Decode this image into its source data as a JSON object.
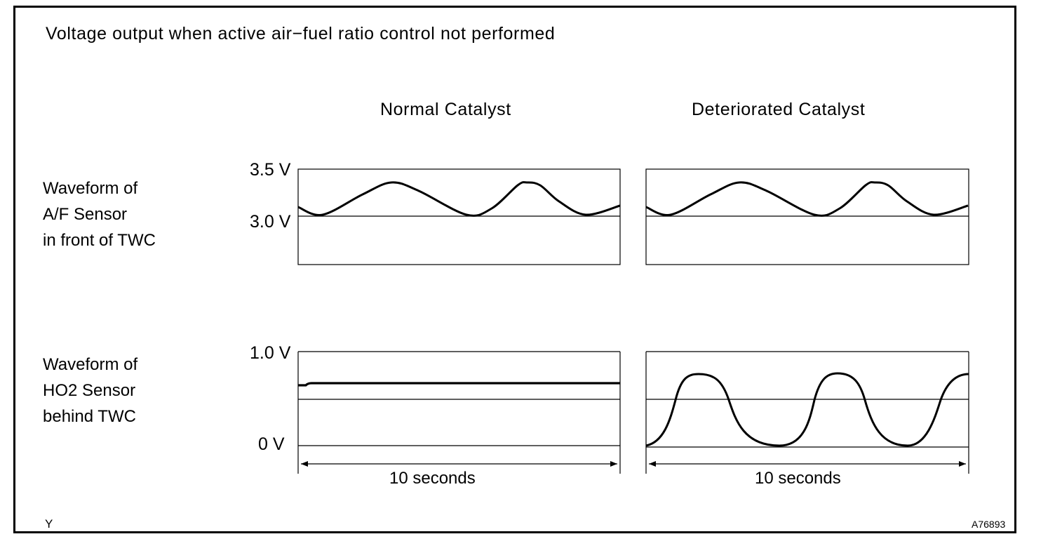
{
  "title": "Voltage output when active air−fuel ratio control not performed",
  "columns": {
    "normal": "Normal Catalyst",
    "deteriorated": "Deteriorated Catalyst"
  },
  "rows": {
    "af_sensor": [
      "Waveform of",
      "A/F Sensor",
      "in front of TWC"
    ],
    "ho2_sensor": [
      "Waveform of",
      "HO2 Sensor",
      "behind TWC"
    ]
  },
  "voltage_labels": {
    "af_top": "3.5 V",
    "af_ref": "3.0 V",
    "ho2_top": "1.0 V",
    "ho2_zero": "0 V"
  },
  "time_span": {
    "normal": "10 seconds",
    "deteriorated": "10 seconds"
  },
  "marks": {
    "corner": "Y",
    "figure_id": "A76893"
  }
}
